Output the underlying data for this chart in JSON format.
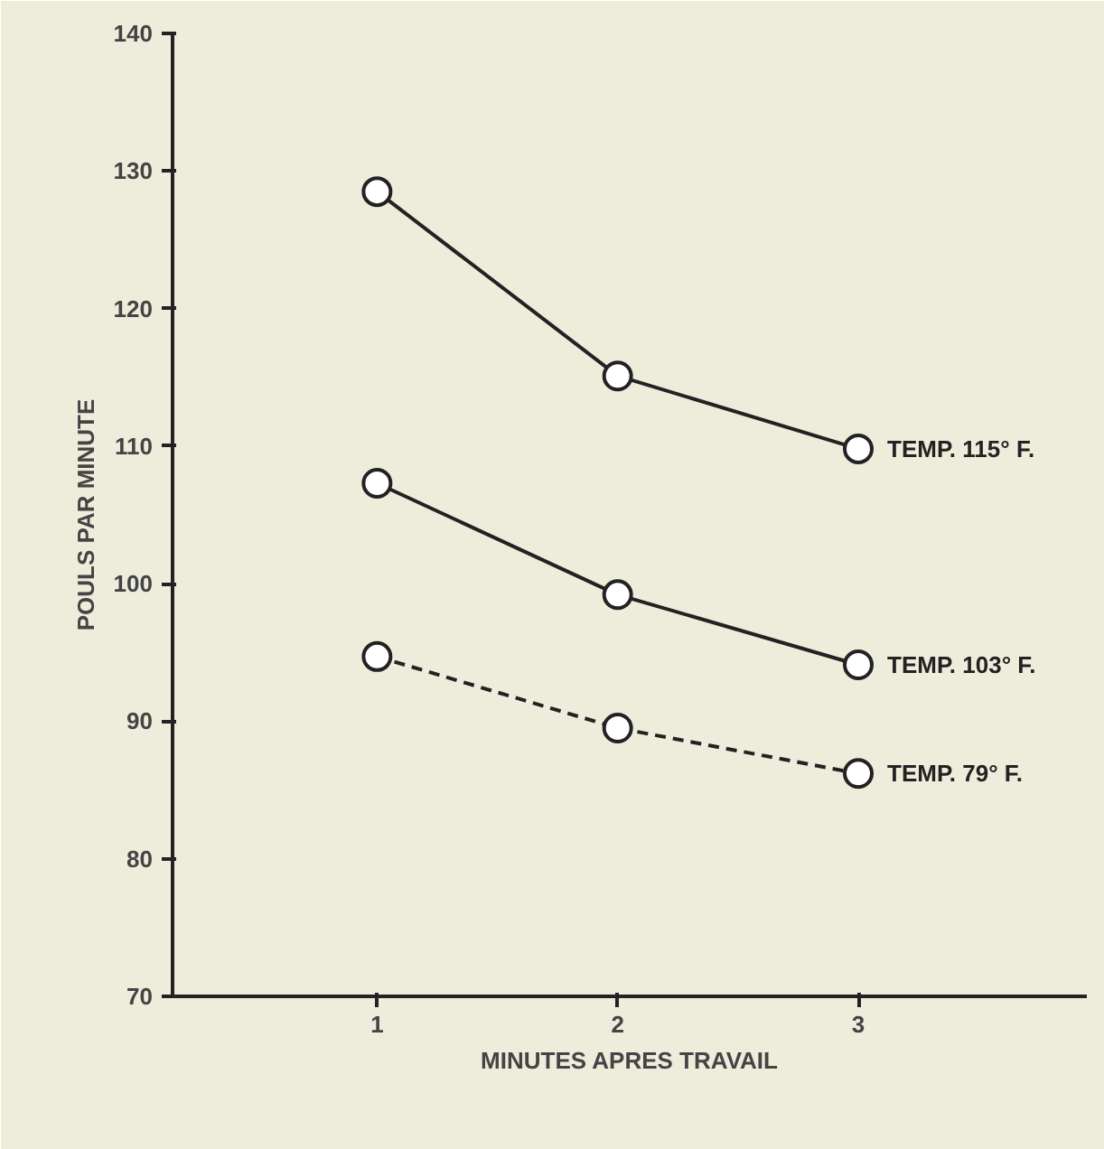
{
  "chart_data": {
    "type": "line",
    "xlabel": "MINUTES APRES TRAVAIL",
    "ylabel": "POULS PAR MINUTE",
    "x": [
      1,
      2,
      3
    ],
    "series": [
      {
        "name": "TEMP. 115° F.",
        "color": "#222222",
        "values": [
          128.5,
          115.1,
          109.8
        ],
        "marker": "circle",
        "line_style": "solid"
      },
      {
        "name": "TEMP. 103° F.",
        "color": "#222222",
        "values": [
          107.3,
          99.2,
          94.1
        ],
        "marker": "circle",
        "line_style": "solid"
      },
      {
        "name": "TEMP. 79° F.",
        "color": "#222222",
        "values": [
          94.7,
          89.5,
          86.2
        ],
        "marker": "circle",
        "line_style": "dashed"
      }
    ],
    "xlim": [
      0.15,
      3.95
    ],
    "xticks": [
      1,
      2,
      3
    ],
    "ylim": [
      70,
      140
    ],
    "yticks": [
      70,
      80,
      90,
      100,
      110,
      120,
      130,
      140
    ],
    "grid": false,
    "legend": false
  }
}
